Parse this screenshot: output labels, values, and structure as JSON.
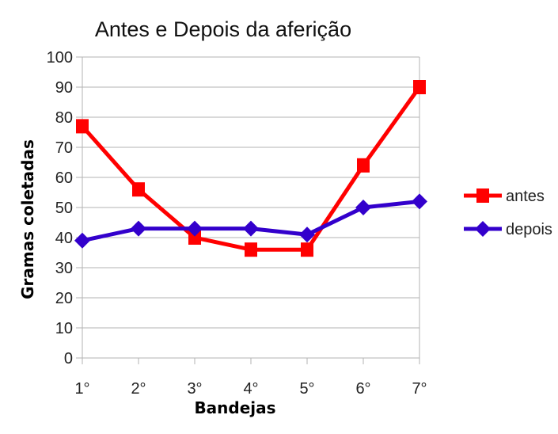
{
  "chart_data": {
    "type": "line",
    "title": "Antes e Depois da aferição",
    "xlabel": "Bandejas",
    "ylabel": "Gramas coletadas",
    "categories": [
      "1°",
      "2°",
      "3°",
      "4°",
      "5°",
      "6°",
      "7°"
    ],
    "ylim": [
      0,
      100
    ],
    "yticks": [
      0,
      10,
      20,
      30,
      40,
      50,
      60,
      70,
      80,
      90,
      100
    ],
    "grid": true,
    "legend_position": "right",
    "series": [
      {
        "name": "antes",
        "color": "#ff0000",
        "marker": "square",
        "values": [
          77,
          56,
          40,
          36,
          36,
          64,
          90
        ]
      },
      {
        "name": "depois",
        "color": "#3300cc",
        "marker": "diamond",
        "values": [
          39,
          43,
          43,
          43,
          41,
          50,
          52
        ]
      }
    ]
  }
}
